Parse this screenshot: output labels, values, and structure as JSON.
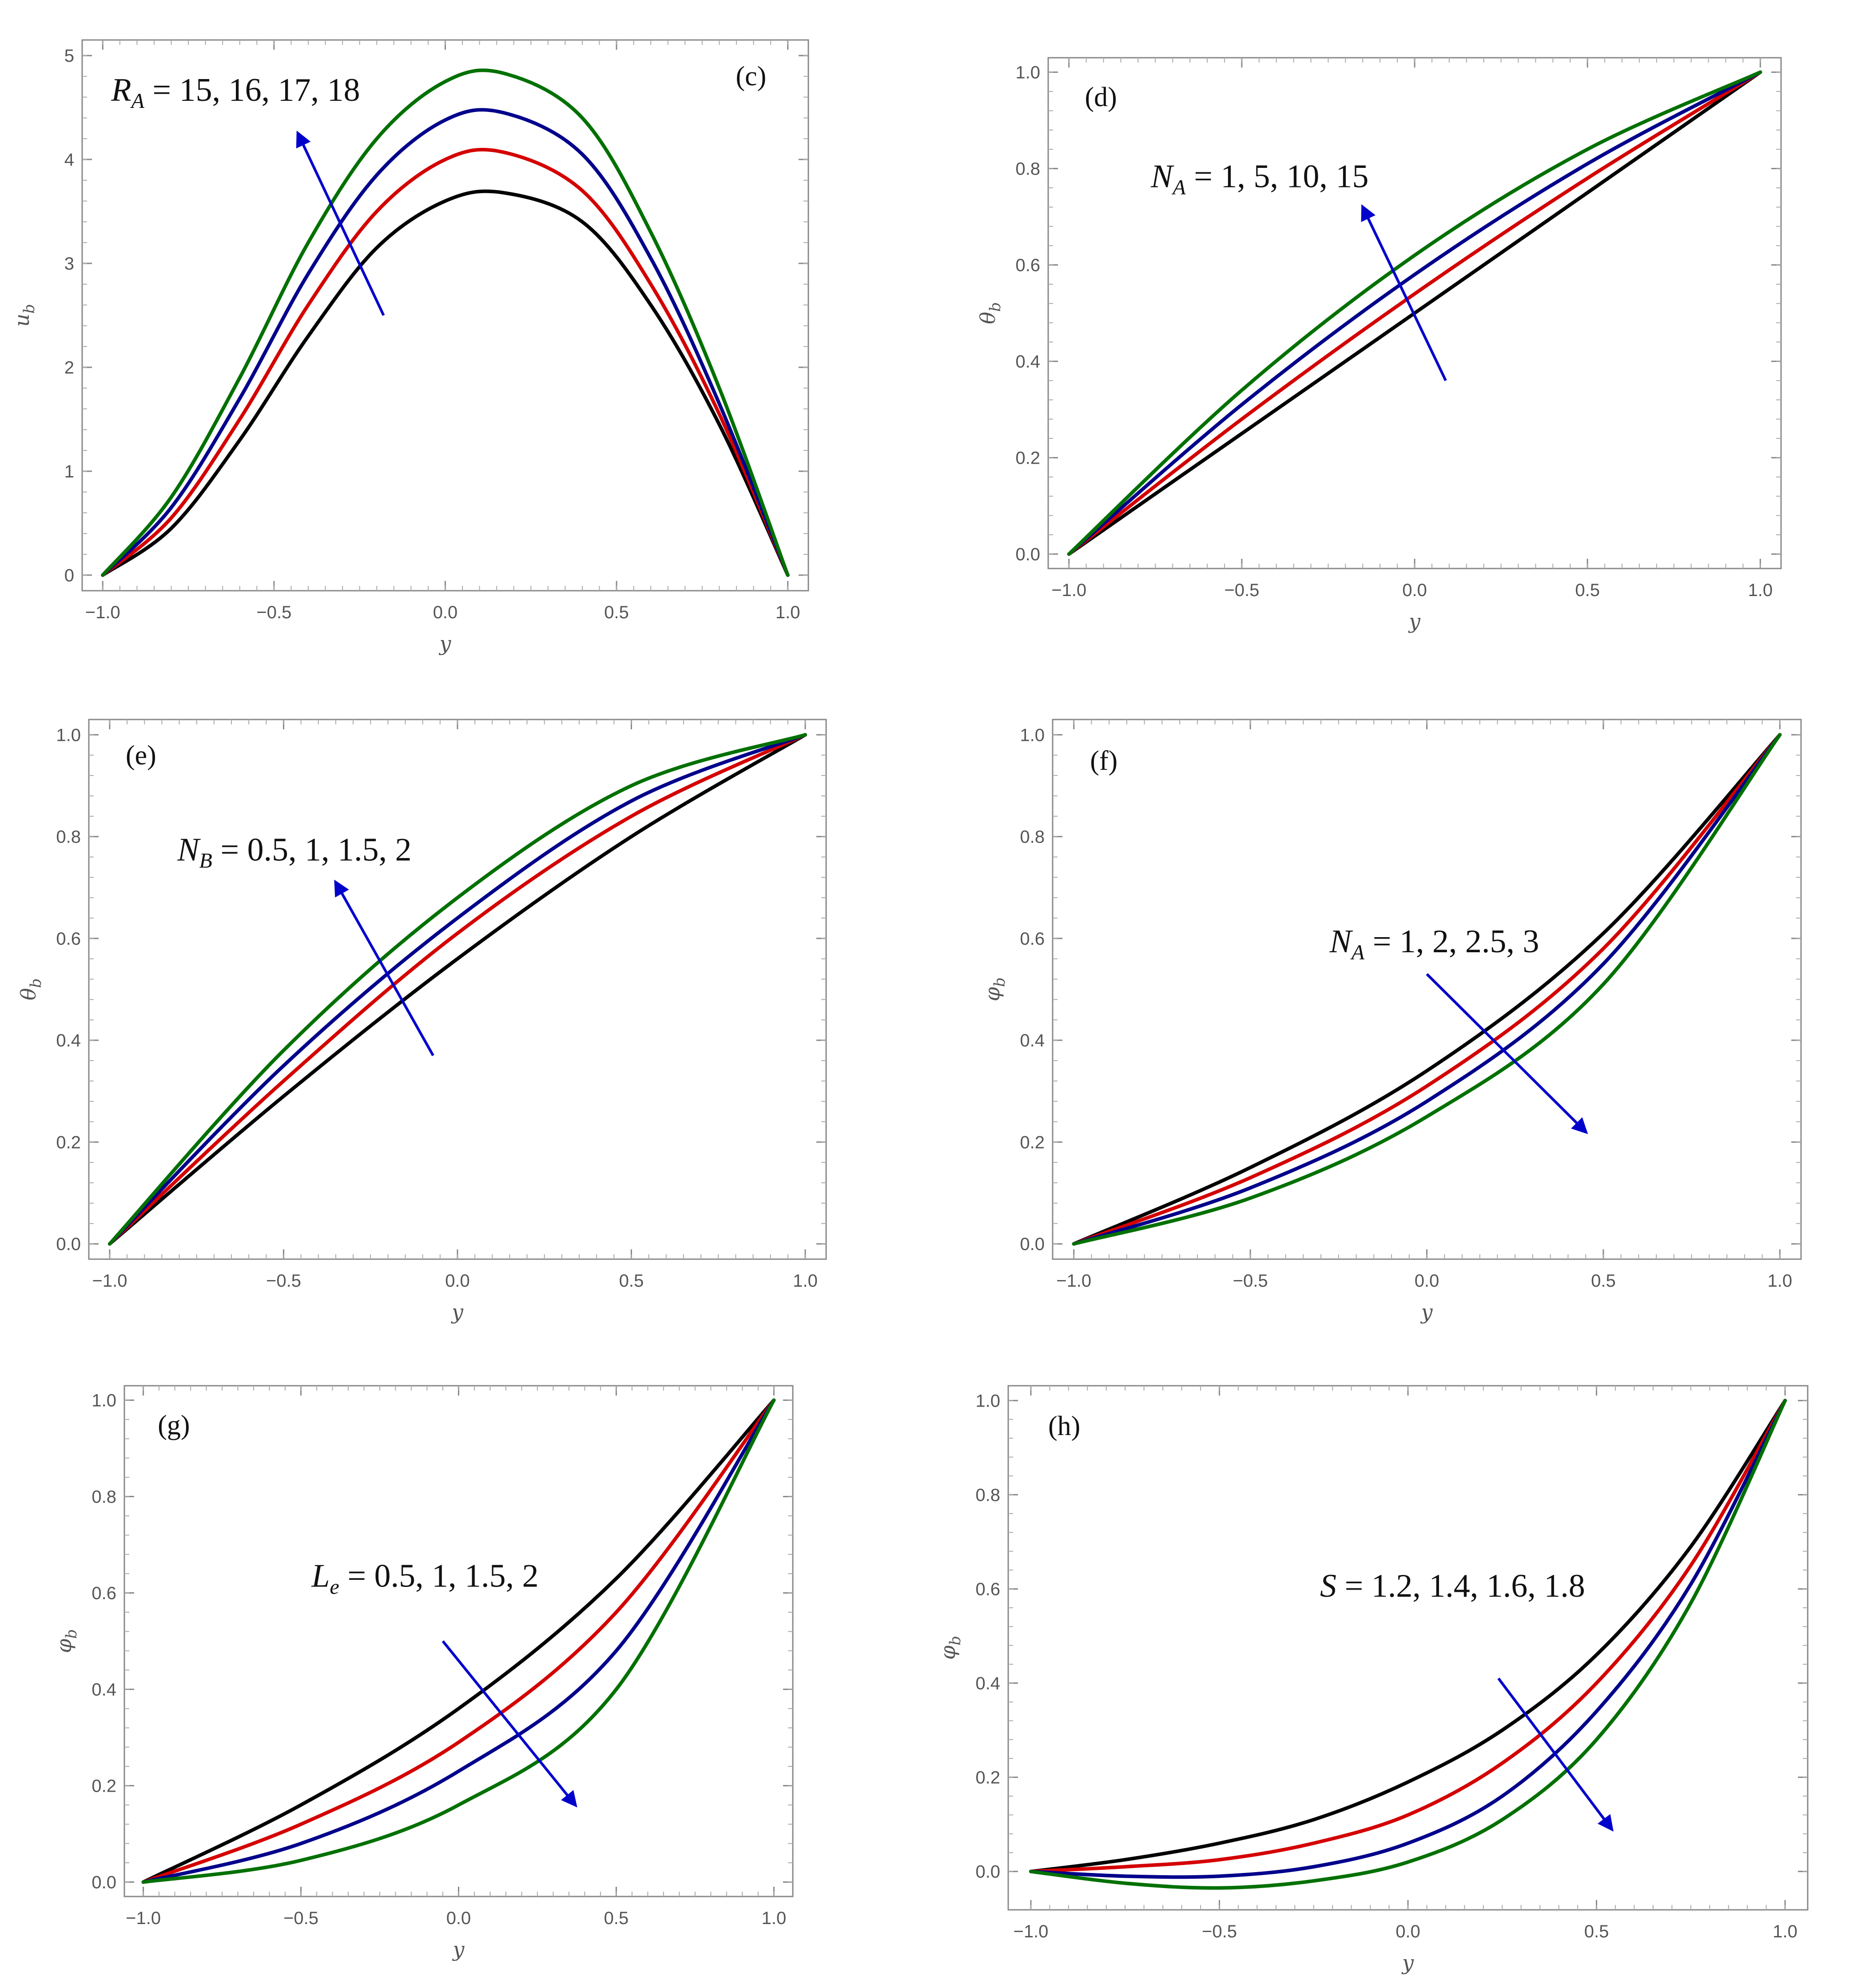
{
  "figure": {
    "line_colors": [
      "#000000",
      "#d40000",
      "#00008b",
      "#007000"
    ],
    "arrow_color": "#0000cc"
  },
  "chart_data": [
    {
      "type": "line",
      "panel_label": "(c)",
      "xlabel": "y",
      "ylabel_base": "u",
      "ylabel_sub": "b",
      "xlim": [
        -1,
        1
      ],
      "ylim": [
        0,
        5
      ],
      "xticks": [
        "-1.0",
        "-0.5",
        "0.0",
        "0.5",
        "1.0"
      ],
      "yticks": [
        "0",
        "1",
        "2",
        "3",
        "4",
        "5"
      ],
      "annotation": {
        "symbol": "R",
        "sub": "A",
        "values": " = 15, 16, 17, 18"
      },
      "arrow": {
        "from": [
          -0.18,
          2.5
        ],
        "to": [
          -0.43,
          4.25
        ]
      },
      "x": [
        -1,
        -0.8,
        -0.6,
        -0.4,
        -0.2,
        0,
        0.17,
        0.4,
        0.6,
        0.8,
        1
      ],
      "series": [
        {
          "name": "R_A = 15",
          "values": [
            0,
            0.45,
            1.3,
            2.3,
            3.15,
            3.6,
            3.68,
            3.4,
            2.6,
            1.45,
            0
          ]
        },
        {
          "name": "R_A = 16",
          "values": [
            0,
            0.55,
            1.5,
            2.6,
            3.5,
            4.0,
            4.07,
            3.7,
            2.8,
            1.55,
            0
          ]
        },
        {
          "name": "R_A = 17",
          "values": [
            0,
            0.65,
            1.7,
            2.9,
            3.85,
            4.38,
            4.45,
            4.05,
            3.05,
            1.65,
            0
          ]
        },
        {
          "name": "R_A = 18",
          "values": [
            0,
            0.75,
            1.9,
            3.2,
            4.2,
            4.75,
            4.83,
            4.4,
            3.3,
            1.8,
            0
          ]
        }
      ]
    },
    {
      "type": "line",
      "panel_label": "(d)",
      "xlabel": "y",
      "ylabel_base": "θ",
      "ylabel_sub": "b",
      "xlim": [
        -1,
        1
      ],
      "ylim": [
        0,
        1
      ],
      "xticks": [
        "-1.0",
        "-0.5",
        "0.0",
        "0.5",
        "1.0"
      ],
      "yticks": [
        "0.0",
        "0.2",
        "0.4",
        "0.6",
        "0.8",
        "1.0"
      ],
      "annotation": {
        "symbol": "N",
        "sub": "A",
        "values": " = 1, 5, 10, 15"
      },
      "arrow": {
        "from": [
          0.09,
          0.36
        ],
        "to": [
          -0.15,
          0.72
        ]
      },
      "x": [
        -1,
        -0.5,
        0,
        0.5,
        1
      ],
      "series": [
        {
          "name": "N_A = 1",
          "values": [
            0,
            0.25,
            0.5,
            0.75,
            1
          ]
        },
        {
          "name": "N_A = 5",
          "values": [
            0,
            0.28,
            0.54,
            0.78,
            1
          ]
        },
        {
          "name": "N_A = 10",
          "values": [
            0,
            0.31,
            0.58,
            0.81,
            1
          ]
        },
        {
          "name": "N_A = 15",
          "values": [
            0,
            0.34,
            0.62,
            0.84,
            1
          ]
        }
      ]
    },
    {
      "type": "line",
      "panel_label": "(e)",
      "xlabel": "y",
      "ylabel_base": "θ",
      "ylabel_sub": "b",
      "xlim": [
        -1,
        1
      ],
      "ylim": [
        0,
        1
      ],
      "xticks": [
        "-1.0",
        "-0.5",
        "0.0",
        "0.5",
        "1.0"
      ],
      "yticks": [
        "0.0",
        "0.2",
        "0.4",
        "0.6",
        "0.8",
        "1.0"
      ],
      "annotation": {
        "symbol": "N",
        "sub": "B",
        "values": " = 0.5, 1, 1.5, 2"
      },
      "arrow": {
        "from": [
          -0.07,
          0.37
        ],
        "to": [
          -0.35,
          0.71
        ]
      },
      "x": [
        -1,
        -0.5,
        0,
        0.5,
        1
      ],
      "series": [
        {
          "name": "N_B = 0.5",
          "values": [
            0,
            0.29,
            0.56,
            0.8,
            1
          ]
        },
        {
          "name": "N_B = 1",
          "values": [
            0,
            0.32,
            0.61,
            0.84,
            1
          ]
        },
        {
          "name": "N_B = 1.5",
          "values": [
            0,
            0.35,
            0.64,
            0.87,
            1
          ]
        },
        {
          "name": "N_B = 2",
          "values": [
            0,
            0.38,
            0.68,
            0.9,
            1
          ]
        }
      ]
    },
    {
      "type": "line",
      "panel_label": "(f)",
      "xlabel": "y",
      "ylabel_base": "φ",
      "ylabel_sub": "b",
      "xlim": [
        -1,
        1
      ],
      "ylim": [
        0,
        1
      ],
      "xticks": [
        "-1.0",
        "-0.5",
        "0.0",
        "0.5",
        "1.0"
      ],
      "yticks": [
        "0.0",
        "0.2",
        "0.4",
        "0.6",
        "0.8",
        "1.0"
      ],
      "annotation": {
        "symbol": "N",
        "sub": "A",
        "values": " = 1, 2, 2.5, 3"
      },
      "arrow": {
        "from": [
          0.0,
          0.53
        ],
        "to": [
          0.45,
          0.22
        ]
      },
      "x": [
        -1,
        -0.5,
        0,
        0.5,
        1
      ],
      "series": [
        {
          "name": "N_A = 1",
          "values": [
            0,
            0.15,
            0.34,
            0.61,
            1
          ]
        },
        {
          "name": "N_A = 2",
          "values": [
            0,
            0.13,
            0.31,
            0.58,
            1
          ]
        },
        {
          "name": "N_A = 2.5",
          "values": [
            0,
            0.11,
            0.28,
            0.55,
            1
          ]
        },
        {
          "name": "N_A = 3",
          "values": [
            0,
            0.09,
            0.25,
            0.51,
            1
          ]
        }
      ]
    },
    {
      "type": "line",
      "panel_label": "(g)",
      "xlabel": "y",
      "ylabel_base": "φ",
      "ylabel_sub": "b",
      "xlim": [
        -1,
        1
      ],
      "ylim": [
        0,
        1
      ],
      "xticks": [
        "-1.0",
        "-0.5",
        "0.0",
        "0.5",
        "1.0"
      ],
      "yticks": [
        "0.0",
        "0.2",
        "0.4",
        "0.6",
        "0.8",
        "1.0"
      ],
      "annotation": {
        "symbol": "L",
        "sub": "e",
        "values": " = 0.5, 1, 1.5, 2"
      },
      "arrow": {
        "from": [
          -0.05,
          0.5
        ],
        "to": [
          0.37,
          0.16
        ]
      },
      "x": [
        -1,
        -0.5,
        0,
        0.5,
        1
      ],
      "series": [
        {
          "name": "L_e = 0.5",
          "values": [
            0,
            0.16,
            0.36,
            0.63,
            1
          ]
        },
        {
          "name": "L_e = 1",
          "values": [
            0,
            0.12,
            0.29,
            0.56,
            1
          ]
        },
        {
          "name": "L_e = 1.5",
          "values": [
            0,
            0.08,
            0.23,
            0.48,
            1
          ]
        },
        {
          "name": "L_e = 2",
          "values": [
            0,
            0.045,
            0.16,
            0.4,
            1
          ]
        }
      ]
    },
    {
      "type": "line",
      "panel_label": "(h)",
      "xlabel": "y",
      "ylabel_base": "φ",
      "ylabel_sub": "b",
      "xlim": [
        -1,
        1
      ],
      "ylim": [
        -0.05,
        1
      ],
      "xticks": [
        "-1.0",
        "-0.5",
        "0.0",
        "0.5",
        "1.0"
      ],
      "yticks": [
        "0.0",
        "0.2",
        "0.4",
        "0.6",
        "0.8",
        "1.0"
      ],
      "annotation": {
        "symbol": "S",
        "sub": "",
        "values": " = 1.2, 1.4, 1.6, 1.8"
      },
      "arrow": {
        "from": [
          0.24,
          0.41
        ],
        "to": [
          0.54,
          0.09
        ]
      },
      "x": [
        -1,
        -0.75,
        -0.5,
        -0.25,
        0,
        0.25,
        0.5,
        0.75,
        1
      ],
      "series": [
        {
          "name": "S = 1.2",
          "values": [
            0,
            0.025,
            0.06,
            0.11,
            0.19,
            0.3,
            0.46,
            0.69,
            1
          ]
        },
        {
          "name": "S = 1.4",
          "values": [
            0,
            0.01,
            0.025,
            0.06,
            0.12,
            0.23,
            0.4,
            0.65,
            1
          ]
        },
        {
          "name": "S = 1.6",
          "values": [
            0,
            -0.01,
            -0.01,
            0.01,
            0.06,
            0.16,
            0.34,
            0.61,
            1
          ]
        },
        {
          "name": "S = 1.8",
          "values": [
            0,
            -0.025,
            -0.035,
            -0.02,
            0.02,
            0.11,
            0.28,
            0.57,
            1
          ]
        }
      ]
    }
  ]
}
